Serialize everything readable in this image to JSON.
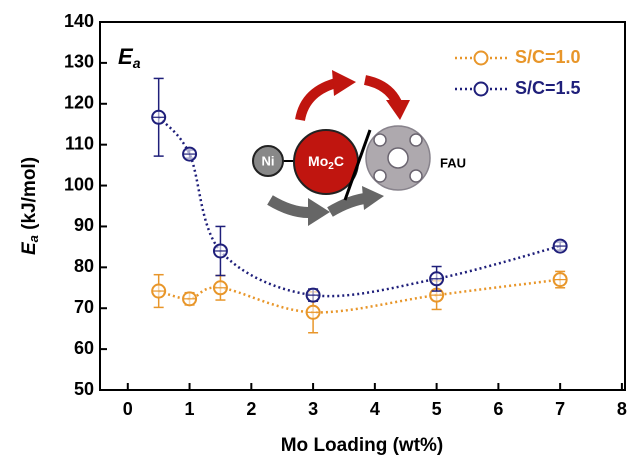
{
  "chart_data": {
    "type": "scatter",
    "x_label": "Mo Loading (wt%)",
    "y_label": {
      "main": "E",
      "sub": "a",
      "unit": " (kJ/mol)"
    },
    "annotation": {
      "main": "E",
      "sub": "a"
    },
    "inset": {
      "ni": "Ni",
      "mo": "Mo",
      "mo_sub": "2",
      "c": "C",
      "fau": "FAU"
    },
    "x": [
      0.5,
      1,
      1.5,
      3,
      5,
      7
    ],
    "series": [
      {
        "name": "S/C=1.0",
        "color": "#e8962a",
        "values": [
          74.2,
          72.3,
          75.0,
          69.0,
          73.2,
          77.0
        ],
        "errors": [
          4,
          1.5,
          3,
          5,
          3.5,
          2
        ]
      },
      {
        "name": "S/C=1.5",
        "color": "#1f1f7a",
        "values": [
          116.7,
          107.7,
          84.0,
          73.2,
          77.2,
          85.2
        ],
        "errors": [
          9.5,
          1,
          6,
          1.5,
          3,
          1
        ]
      }
    ],
    "xlim": [
      -0.45,
      8.05
    ],
    "xticks": [
      0,
      1,
      2,
      3,
      4,
      5,
      6,
      7,
      8
    ],
    "ylim": [
      50,
      140
    ],
    "yticks": [
      50,
      60,
      70,
      80,
      90,
      100,
      110,
      120,
      130,
      140
    ],
    "legend": "top-right"
  }
}
